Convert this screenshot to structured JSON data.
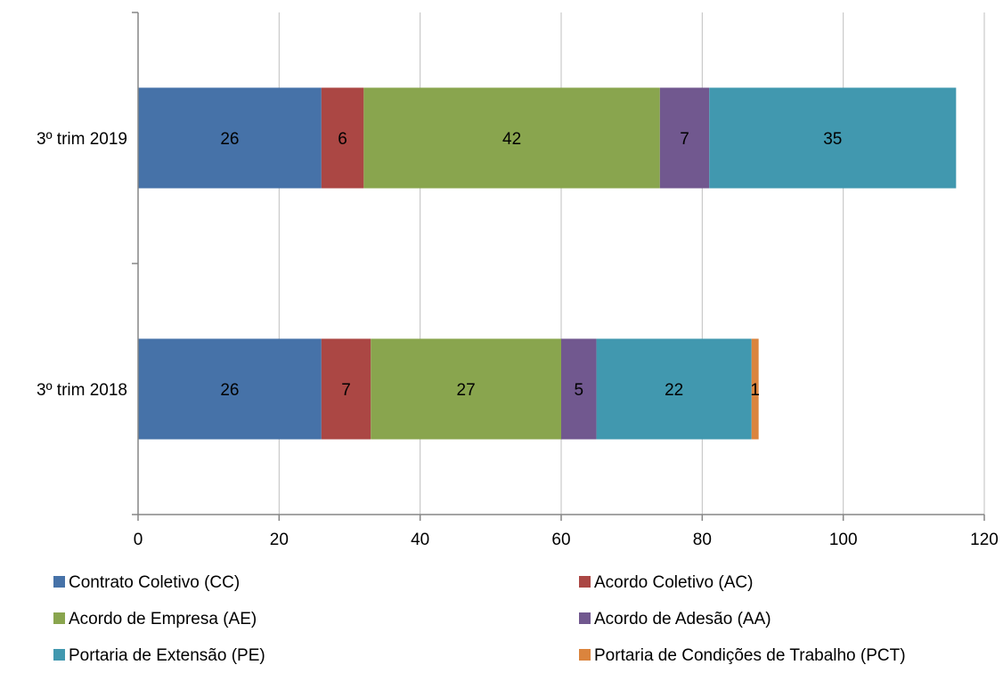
{
  "chart_data": {
    "type": "bar",
    "orientation": "horizontal",
    "stacked": true,
    "title": "",
    "xlabel": "",
    "ylabel": "",
    "xlim": [
      0,
      120
    ],
    "x_ticks": [
      0,
      20,
      40,
      60,
      80,
      100,
      120
    ],
    "grid": "vertical",
    "legend_position": "bottom",
    "categories": [
      "3º trim 2019",
      "3º trim 2018"
    ],
    "series": [
      {
        "name": "Contrato Coletivo (CC)",
        "color": "#4672A8",
        "values": [
          26,
          26
        ]
      },
      {
        "name": "Acordo Coletivo  (AC)",
        "color": "#AB4744",
        "values": [
          6,
          7
        ]
      },
      {
        "name": "Acordo de Empresa (AE)",
        "color": "#89A54E",
        "values": [
          42,
          27
        ]
      },
      {
        "name": "Acordo de Adesão (AA)",
        "color": "#71588F",
        "values": [
          7,
          5
        ]
      },
      {
        "name": "Portaria de Extensão (PE)",
        "color": "#4198AF",
        "values": [
          35,
          22
        ]
      },
      {
        "name": "Portaria de Condições de Trabalho (PCT)",
        "color": "#DB843D",
        "values": [
          0,
          1
        ]
      }
    ]
  }
}
